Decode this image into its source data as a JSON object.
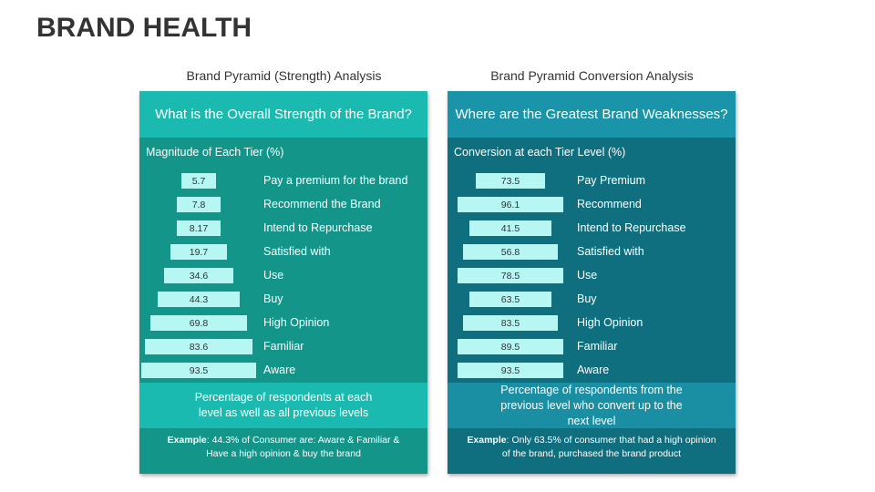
{
  "title": "BRAND HEALTH",
  "panels": [
    {
      "caption": "Brand Pyramid (Strength) Analysis",
      "header": "What is the Overall Strength of the Brand?",
      "subheader": "Magnitude of Each Tier (%)",
      "rows": [
        {
          "value": 5.7,
          "label": "Pay a premium for the brand"
        },
        {
          "value": 7.8,
          "label": "Recommend the Brand"
        },
        {
          "value": 8.17,
          "label": "Intend to Repurchase"
        },
        {
          "value": 19.7,
          "label": "Satisfied with"
        },
        {
          "value": 34.6,
          "label": "Use"
        },
        {
          "value": 44.3,
          "label": "Buy"
        },
        {
          "value": 69.8,
          "label": "High Opinion"
        },
        {
          "value": 83.6,
          "label": "Familiar"
        },
        {
          "value": 93.5,
          "label": "Aware"
        }
      ],
      "footer": "Percentage of respondents at each level as well as all previous levels",
      "example_label": "Example",
      "example_text": ": 44.3% of Consumer are: Aware & Familiar & Have a high opinion & buy the brand"
    },
    {
      "caption": "Brand Pyramid Conversion Analysis",
      "header": "Where are the Greatest Brand Weaknesses?",
      "subheader": "Conversion at each Tier Level (%)",
      "rows": [
        {
          "value": 73.5,
          "label": "Pay Premium"
        },
        {
          "value": 96.1,
          "label": "Recommend"
        },
        {
          "value": 41.5,
          "label": "Intend to Repurchase"
        },
        {
          "value": 56.8,
          "label": "Satisfied with"
        },
        {
          "value": 78.5,
          "label": "Use"
        },
        {
          "value": 63.5,
          "label": "Buy"
        },
        {
          "value": 83.5,
          "label": "High Opinion"
        },
        {
          "value": 89.5,
          "label": "Familiar"
        },
        {
          "value": 93.5,
          "label": "Aware"
        }
      ],
      "footer": "Percentage of respondents from the previous level who convert up to the next level",
      "example_label": "Example",
      "example_text": ": Only 63.5% of consumer that had a high opinion of the brand, purchased the brand product"
    }
  ]
}
